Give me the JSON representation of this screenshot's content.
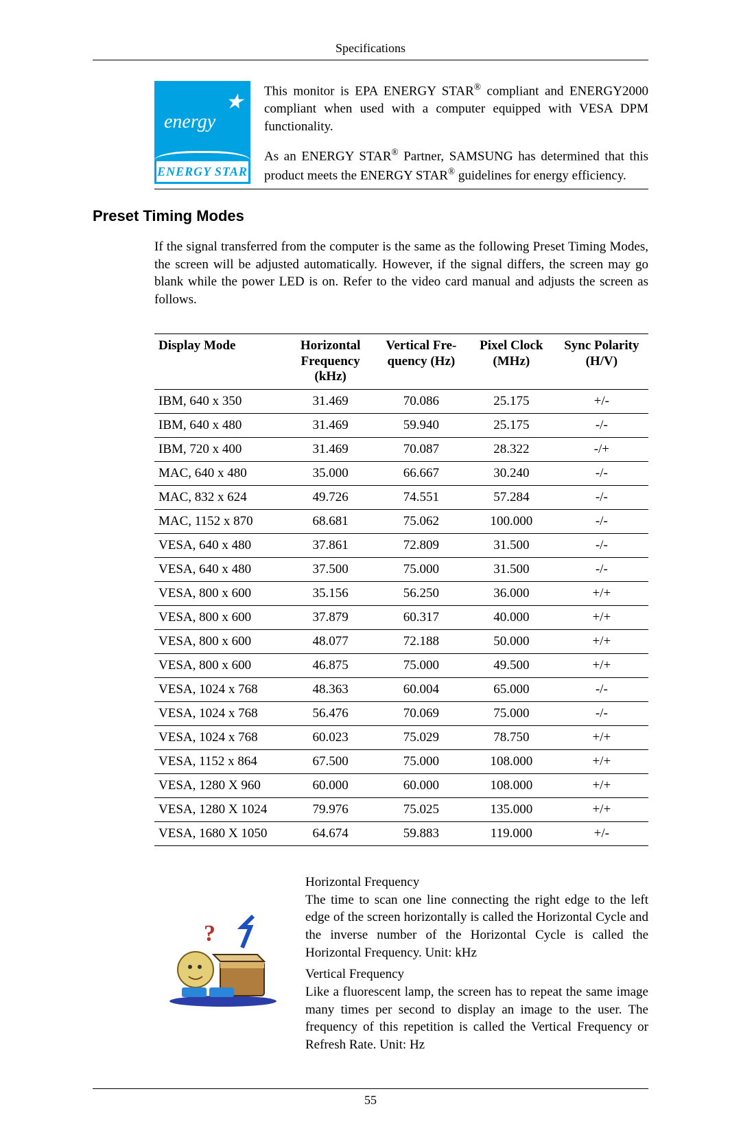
{
  "page": {
    "running_header": "Specifications",
    "page_number": "55"
  },
  "logo": {
    "script": "energy",
    "bottom": "ENERGY STAR",
    "star": "★",
    "blue": "#00a2e1",
    "white": "#ffffff"
  },
  "intro": {
    "p1_a": "This monitor is EPA ENERGY STAR",
    "reg": "®",
    "p1_b": " compliant and ENERGY2000 compliant when used with a computer equipped with VESA DPM functionality.",
    "p2_a": "As an ENERGY STAR",
    "p2_b": " Partner, SAMSUNG has determined that this product meets the ENERGY STAR",
    "p2_c": " guidelines for energy efficiency."
  },
  "section_title": "Preset Timing Modes",
  "section_body": "If the signal transferred from the computer is the same as the following Preset Timing Modes, the screen will be adjusted automatically. However, if the signal differs, the screen may go blank while the power LED is on. Refer to the video card manual and adjusts the screen as follows.",
  "table": {
    "headers": {
      "c0": "Display Mode",
      "c1a": "Horizontal",
      "c1b": "Frequency",
      "c1c": "(kHz)",
      "c2a": "Vertical Fre-",
      "c2b": "quency (Hz)",
      "c3a": "Pixel Clock",
      "c3b": "(MHz)",
      "c4a": "Sync Polarity",
      "c4b": "(H/V)"
    },
    "col_widths": {
      "c0": "200px",
      "c1": "130px",
      "c2": "140px",
      "c3": "130px",
      "c4": "140px"
    },
    "rows": [
      {
        "mode": "IBM, 640 x 350",
        "hf": "31.469",
        "vf": "70.086",
        "pc": "25.175",
        "sp": "+/-"
      },
      {
        "mode": "IBM, 640 x 480",
        "hf": "31.469",
        "vf": "59.940",
        "pc": "25.175",
        "sp": "-/-"
      },
      {
        "mode": "IBM, 720 x 400",
        "hf": "31.469",
        "vf": "70.087",
        "pc": "28.322",
        "sp": "-/+"
      },
      {
        "mode": "MAC, 640 x 480",
        "hf": "35.000",
        "vf": "66.667",
        "pc": "30.240",
        "sp": "-/-"
      },
      {
        "mode": "MAC, 832 x 624",
        "hf": "49.726",
        "vf": "74.551",
        "pc": "57.284",
        "sp": "-/-"
      },
      {
        "mode": "MAC, 1152 x 870",
        "hf": "68.681",
        "vf": "75.062",
        "pc": "100.000",
        "sp": "-/-"
      },
      {
        "mode": "VESA, 640 x 480",
        "hf": "37.861",
        "vf": "72.809",
        "pc": "31.500",
        "sp": "-/-"
      },
      {
        "mode": "VESA, 640 x 480",
        "hf": "37.500",
        "vf": "75.000",
        "pc": "31.500",
        "sp": "-/-"
      },
      {
        "mode": "VESA, 800 x 600",
        "hf": "35.156",
        "vf": "56.250",
        "pc": "36.000",
        "sp": "+/+"
      },
      {
        "mode": "VESA, 800 x 600",
        "hf": "37.879",
        "vf": "60.317",
        "pc": "40.000",
        "sp": "+/+"
      },
      {
        "mode": "VESA, 800 x 600",
        "hf": "48.077",
        "vf": "72.188",
        "pc": "50.000",
        "sp": "+/+"
      },
      {
        "mode": "VESA, 800 x 600",
        "hf": "46.875",
        "vf": "75.000",
        "pc": "49.500",
        "sp": "+/+"
      },
      {
        "mode": "VESA, 1024 x 768",
        "hf": "48.363",
        "vf": "60.004",
        "pc": "65.000",
        "sp": "-/-"
      },
      {
        "mode": "VESA, 1024 x 768",
        "hf": "56.476",
        "vf": "70.069",
        "pc": "75.000",
        "sp": "-/-"
      },
      {
        "mode": "VESA, 1024 x 768",
        "hf": "60.023",
        "vf": "75.029",
        "pc": "78.750",
        "sp": "+/+"
      },
      {
        "mode": "VESA, 1152 x 864",
        "hf": "67.500",
        "vf": "75.000",
        "pc": "108.000",
        "sp": "+/+"
      },
      {
        "mode": "VESA, 1280 X 960",
        "hf": "60.000",
        "vf": "60.000",
        "pc": "108.000",
        "sp": "+/+"
      },
      {
        "mode": "VESA, 1280 X 1024",
        "hf": "79.976",
        "vf": "75.025",
        "pc": "135.000",
        "sp": "+/+"
      },
      {
        "mode": "VESA, 1680 X 1050",
        "hf": "64.674",
        "vf": "59.883",
        "pc": "119.000",
        "sp": "+/-"
      }
    ]
  },
  "defs": {
    "hf_term": "Horizontal Frequency",
    "hf_body": "The time to scan one line connecting the right edge to the left edge of the screen horizontally is called the Horizontal Cycle and the inverse number of the Horizontal Cycle is called the Horizontal Frequency. Unit: kHz",
    "vf_term": "Vertical Frequency",
    "vf_body": "Like a fluorescent lamp, the screen has to repeat the same image many times per second to display an image to the user. The frequency of this repetition is called the Vertical Frequency or Refresh Rate. Unit: Hz"
  }
}
